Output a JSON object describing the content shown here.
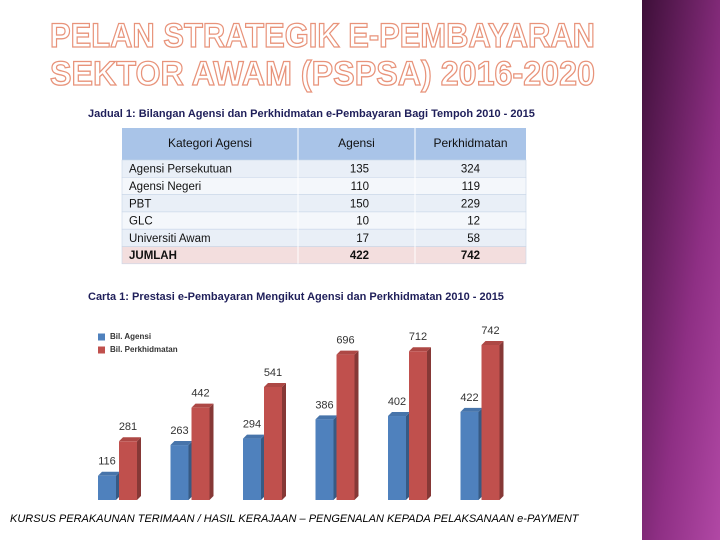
{
  "header": {
    "title_lines": [
      "PELAN STRATEGIK E-PEMBAYARAN",
      "SEKTOR AWAM (PSPSA) 2016-2020"
    ]
  },
  "table": {
    "caption": "Jadual 1: Bilangan Agensi dan Perkhidmatan e-Pembayaran Bagi Tempoh 2010 - 2015",
    "columns": [
      "Kategori Agensi",
      "Agensi",
      "Perkhidmatan"
    ],
    "rows": [
      [
        "Agensi Persekutuan",
        135,
        324
      ],
      [
        "Agensi Negeri",
        110,
        119
      ],
      [
        "PBT",
        150,
        229
      ],
      [
        "GLC",
        10,
        12
      ],
      [
        "Universiti  Awam",
        17,
        58
      ],
      [
        "JUMLAH",
        422,
        742
      ]
    ]
  },
  "chart_data": {
    "type": "bar",
    "title": "Carta 1: Prestasi e-Pembayaran Mengikut Agensi dan Perkhidmatan 2010 - 2015",
    "categories": [
      null,
      null,
      null,
      null,
      null,
      null
    ],
    "series": [
      {
        "name": "Bil. Agensi",
        "color": "#4f81bd",
        "values": [
          116,
          263,
          294,
          386,
          402,
          422
        ]
      },
      {
        "name": "Bil. Perkhidmatan",
        "color": "#c0504d",
        "values": [
          281,
          442,
          541,
          696,
          712,
          742
        ]
      }
    ]
  },
  "footer": "KURSUS PERAKAUNAN TERIMAAN / HASIL KERAJAAN – PENGENALAN KEPADA PELAKSANAAN e-PAYMENT"
}
